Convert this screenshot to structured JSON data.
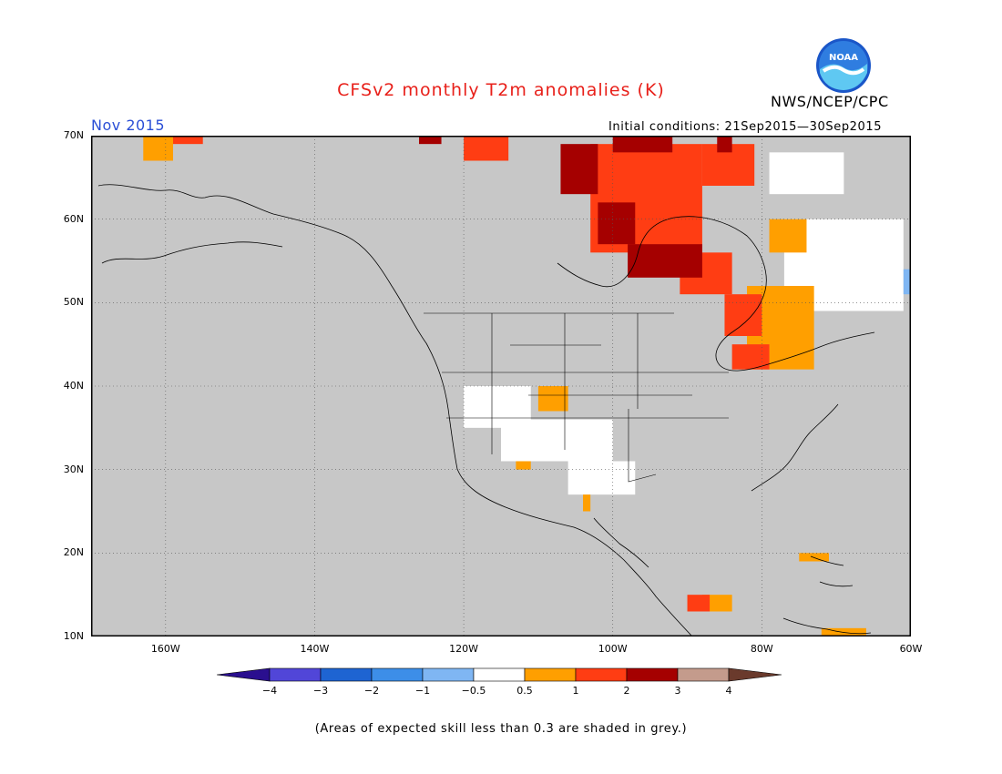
{
  "header": {
    "title": "CFSv2 monthly T2m anomalies (K)",
    "org": "NWS/NCEP/CPC",
    "month": "Nov 2015",
    "initial_conditions": "Initial conditions: 21Sep2015—30Sep2015",
    "logo_text": "NOAA"
  },
  "axes": {
    "lat_labels": [
      "70N",
      "60N",
      "50N",
      "40N",
      "30N",
      "20N",
      "10N"
    ],
    "lon_labels": [
      "160W",
      "140W",
      "120W",
      "100W",
      "80W",
      "60W"
    ]
  },
  "colorbar": {
    "labels": [
      "−4",
      "−3",
      "−2",
      "−1",
      "−0.5",
      "0.5",
      "1",
      "2",
      "3",
      "4"
    ],
    "colors": [
      "#2a0f8f",
      "#5146d8",
      "#1e64d2",
      "#3d8ee8",
      "#7fb6f3",
      "#ffffff",
      "#ff9f00",
      "#ff3d13",
      "#a50000",
      "#c49b8c",
      "#6a3a2c"
    ]
  },
  "map_colors": {
    "ocean_land_grey": "#c7c7c7",
    "near_normal_white": "#ffffff"
  },
  "footer": {
    "note": "(Areas of expected skill less than 0.3 are shaded in grey.)"
  }
}
